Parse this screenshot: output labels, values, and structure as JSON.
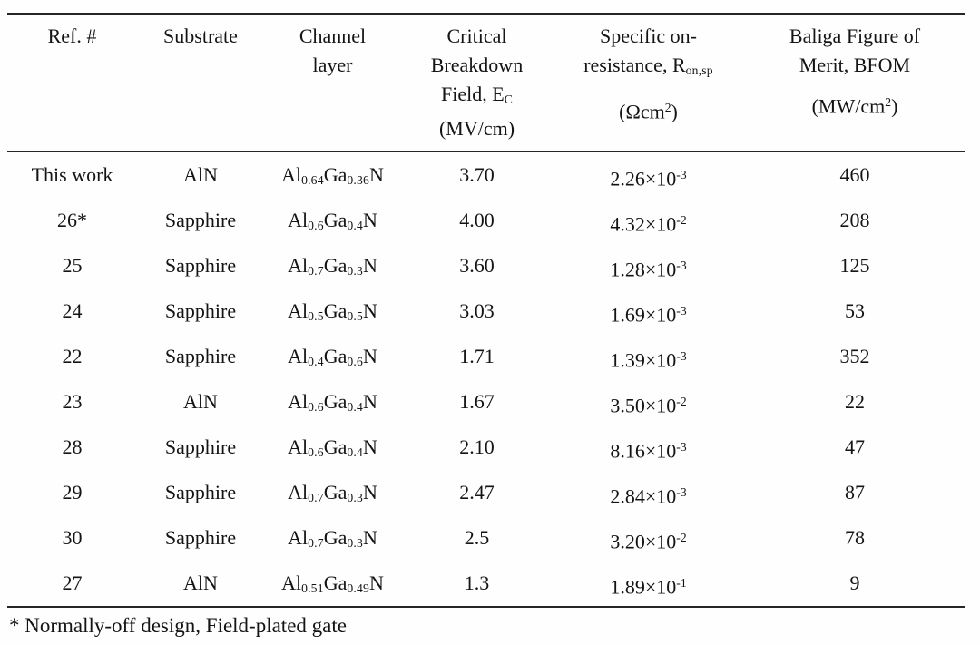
{
  "table": {
    "headers": {
      "ref": "Ref. #",
      "substrate": "Substrate",
      "channel_line1": "Channel",
      "channel_line2": "layer",
      "ec_line1": "Critical",
      "ec_line2": "Breakdown",
      "ec_line3_pre": "Field, E",
      "ec_line3_sub": "C",
      "ec_line4": "(MV/cm)",
      "ron_line1": "Specific on-",
      "ron_line2_pre": "resistance, R",
      "ron_line2_sub": "on,sp",
      "ron_unit_pre": "(Ωcm",
      "ron_unit_sup": "2",
      "ron_unit_post": ")",
      "bfom_line1": "Baliga Figure of",
      "bfom_line2": "Merit, BFOM",
      "bfom_unit_pre": "(MW/cm",
      "bfom_unit_sup": "2",
      "bfom_unit_post": ")"
    },
    "rows": [
      {
        "ref": "This work",
        "substrate": "AlN",
        "channel": {
          "el1": "Al",
          "x1": "0.64",
          "el2": "Ga",
          "x2": "0.36",
          "el3": "N"
        },
        "ec": "3.70",
        "ron": {
          "m": "2.26",
          "b": "×10",
          "e": "-3"
        },
        "bfom": "460"
      },
      {
        "ref": "26*",
        "substrate": "Sapphire",
        "channel": {
          "el1": "Al",
          "x1": "0.6",
          "el2": "Ga",
          "x2": "0.4",
          "el3": "N"
        },
        "ec": "4.00",
        "ron": {
          "m": "4.32",
          "b": "×10",
          "e": "-2"
        },
        "bfom": "208"
      },
      {
        "ref": "25",
        "substrate": "Sapphire",
        "channel": {
          "el1": "Al",
          "x1": "0.7",
          "el2": "Ga",
          "x2": "0.3",
          "el3": "N"
        },
        "ec": "3.60",
        "ron": {
          "m": "1.28",
          "b": "×10",
          "e": "-3"
        },
        "bfom": "125"
      },
      {
        "ref": "24",
        "substrate": "Sapphire",
        "channel": {
          "el1": "Al",
          "x1": "0.5",
          "el2": "Ga",
          "x2": "0.5",
          "el3": "N"
        },
        "ec": "3.03",
        "ron": {
          "m": "1.69",
          "b": "×10",
          "e": "-3"
        },
        "bfom": "53"
      },
      {
        "ref": "22",
        "substrate": "Sapphire",
        "channel": {
          "el1": "Al",
          "x1": "0.4",
          "el2": "Ga",
          "x2": "0.6",
          "el3": "N"
        },
        "ec": "1.71",
        "ron": {
          "m": "1.39",
          "b": "×10",
          "e": "-3"
        },
        "bfom": "352"
      },
      {
        "ref": "23",
        "substrate": "AlN",
        "channel": {
          "el1": "Al",
          "x1": "0.6",
          "el2": "Ga",
          "x2": "0.4",
          "el3": "N"
        },
        "ec": "1.67",
        "ron": {
          "m": "3.50",
          "b": "×10",
          "e": "-2"
        },
        "bfom": "22"
      },
      {
        "ref": "28",
        "substrate": "Sapphire",
        "channel": {
          "el1": "Al",
          "x1": "0.6",
          "el2": "Ga",
          "x2": "0.4",
          "el3": "N"
        },
        "ec": "2.10",
        "ron": {
          "m": "8.16",
          "b": "×10",
          "e": "-3"
        },
        "bfom": "47"
      },
      {
        "ref": "29",
        "substrate": "Sapphire",
        "channel": {
          "el1": "Al",
          "x1": "0.7",
          "el2": "Ga",
          "x2": "0.3",
          "el3": "N"
        },
        "ec": "2.47",
        "ron": {
          "m": "2.84",
          "b": "×10",
          "e": "-3"
        },
        "bfom": "87"
      },
      {
        "ref": "30",
        "substrate": "Sapphire",
        "channel": {
          "el1": "Al",
          "x1": "0.7",
          "el2": "Ga",
          "x2": "0.3",
          "el3": "N"
        },
        "ec": "2.5",
        "ron": {
          "m": "3.20",
          "b": "×10",
          "e": "-2"
        },
        "bfom": "78"
      },
      {
        "ref": "27",
        "substrate": "AlN",
        "channel": {
          "el1": "Al",
          "x1": "0.51",
          "el2": "Ga",
          "x2": "0.49",
          "el3": "N"
        },
        "ec": "1.3",
        "ron": {
          "m": "1.89",
          "b": "×10",
          "e": "-1"
        },
        "bfom": "9"
      }
    ]
  },
  "footnote": "* Normally-off design, Field-plated gate",
  "colors": {
    "text": "#141414",
    "rule": "#262626",
    "background": "#fefefe"
  }
}
